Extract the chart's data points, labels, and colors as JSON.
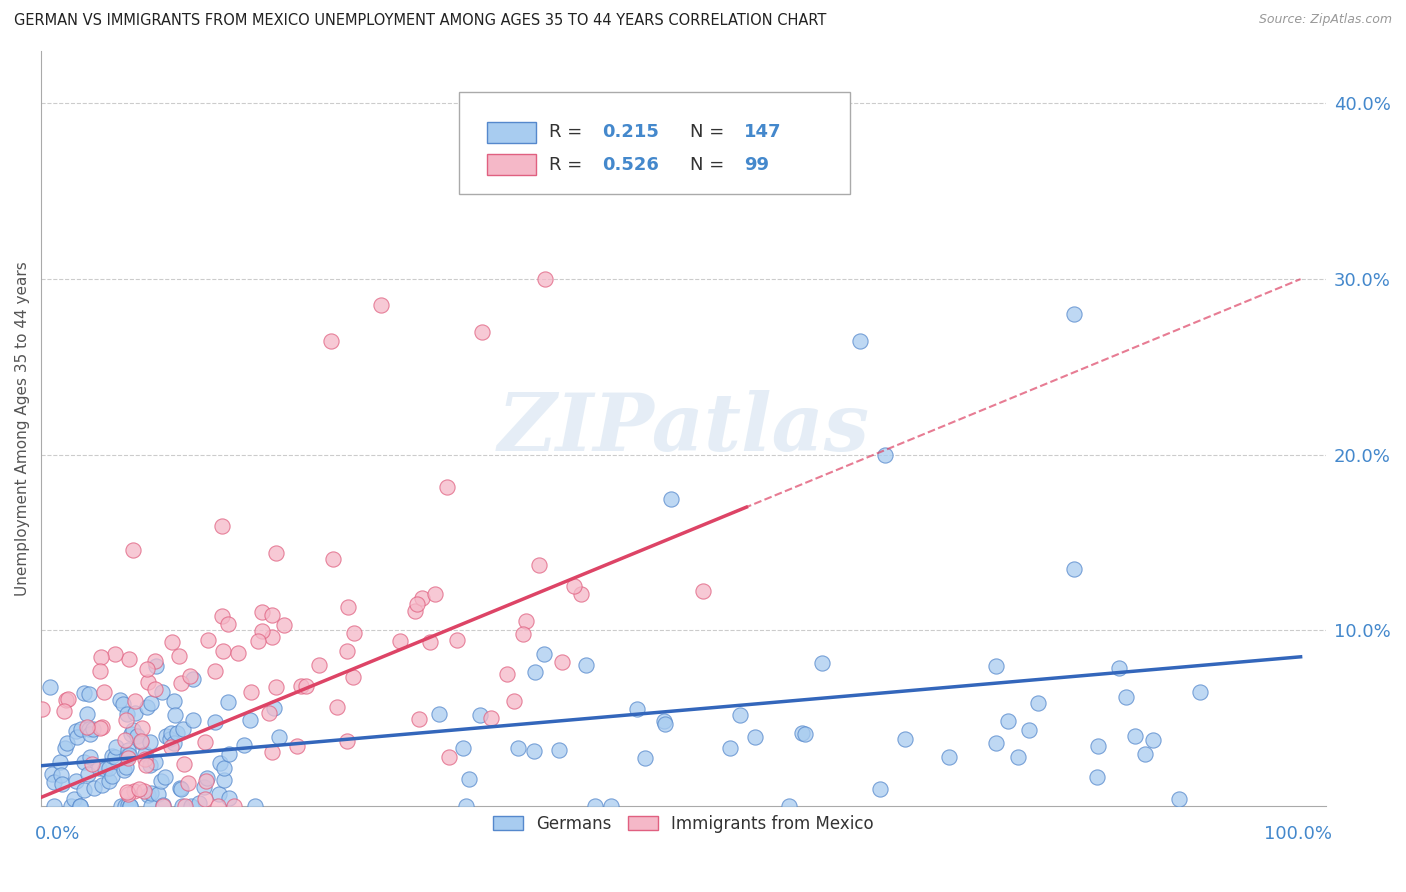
{
  "title": "GERMAN VS IMMIGRANTS FROM MEXICO UNEMPLOYMENT AMONG AGES 35 TO 44 YEARS CORRELATION CHART",
  "source": "Source: ZipAtlas.com",
  "ylabel": "Unemployment Among Ages 35 to 44 years",
  "xlim": [
    0.0,
    1.0
  ],
  "ylim": [
    0.0,
    0.42
  ],
  "german_R": 0.215,
  "german_N": 147,
  "mexico_R": 0.526,
  "mexico_N": 99,
  "german_color": "#A8CCF0",
  "mexico_color": "#F5B8C8",
  "german_edge_color": "#5588CC",
  "mexico_edge_color": "#E06080",
  "german_line_color": "#3366BB",
  "mexico_line_color": "#DD4466",
  "background_color": "#FFFFFF",
  "grid_color": "#CCCCCC",
  "title_fontsize": 11,
  "axis_label_color": "#4488CC",
  "watermark_text": "ZIPatlas",
  "y_ticks": [
    0.0,
    0.1,
    0.2,
    0.3,
    0.4
  ],
  "y_tick_labels": [
    "",
    "10.0%",
    "20.0%",
    "30.0%",
    "40.0%"
  ]
}
